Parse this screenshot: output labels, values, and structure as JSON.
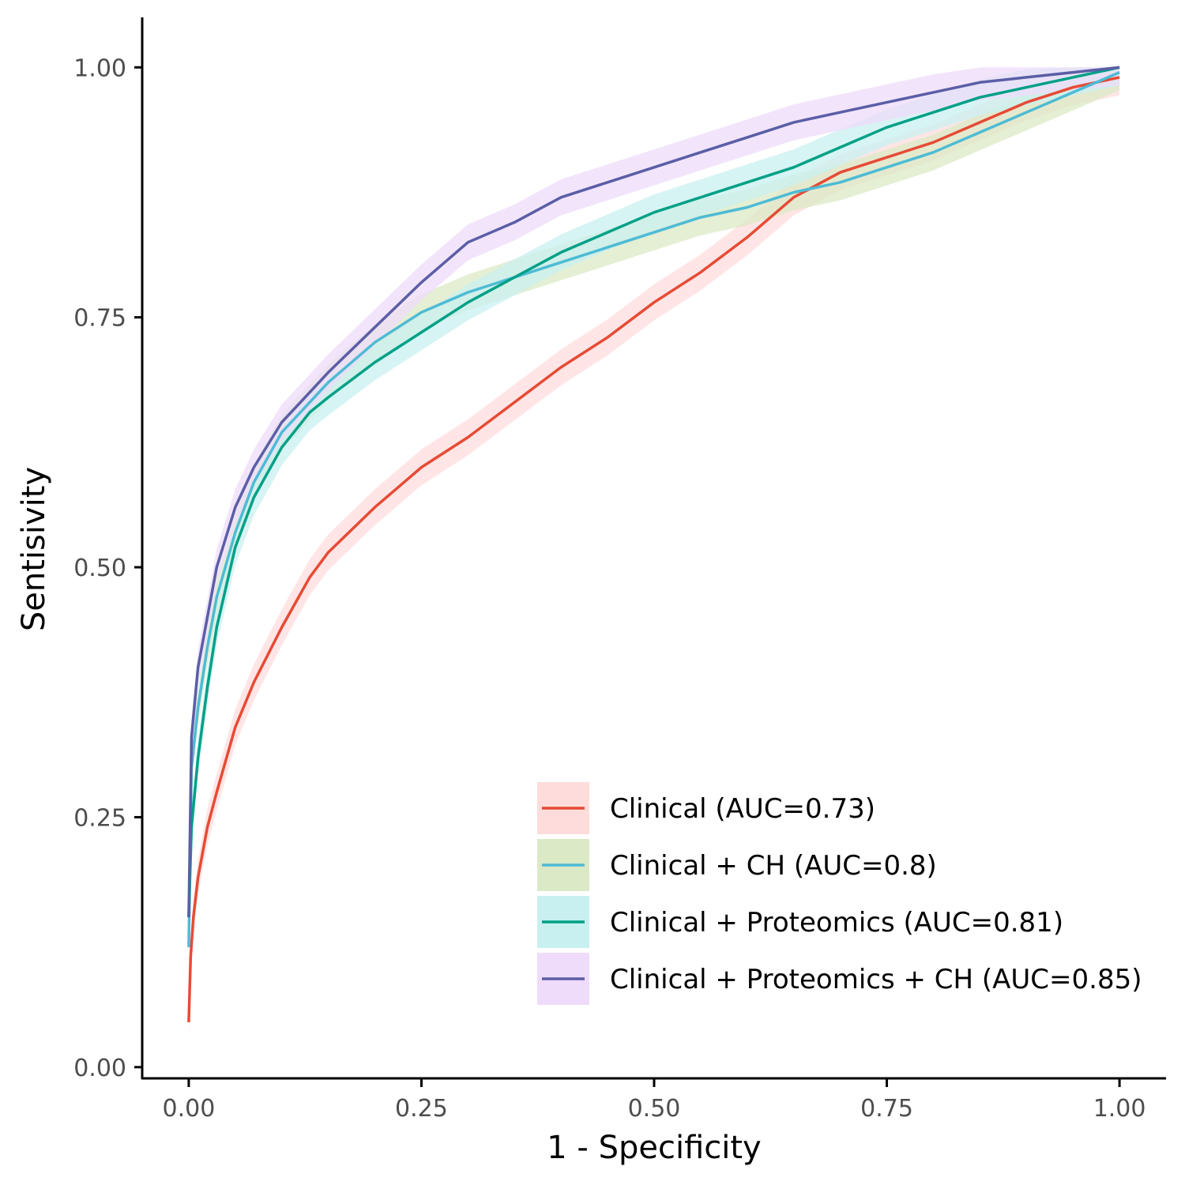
{
  "chart_data": {
    "type": "line",
    "xlabel": "1 - Specificity",
    "ylabel": "Sentisivity",
    "xlim": [
      -0.05,
      1.05
    ],
    "ylim": [
      -0.012,
      1.05
    ],
    "x_ticks": [
      "0.00",
      "0.25",
      "0.50",
      "0.75",
      "1.00"
    ],
    "y_ticks": [
      "0.00",
      "0.25",
      "0.50",
      "0.75",
      "1.00"
    ],
    "grid": false,
    "legend_position": "bottom-right",
    "series": [
      {
        "name": "Clinical (AUC=0.73)",
        "color": "#e64b35",
        "band_color": "#ffdcdc",
        "band": 0.018,
        "points": [
          [
            0.0,
            0.045
          ],
          [
            0.002,
            0.11
          ],
          [
            0.005,
            0.15
          ],
          [
            0.01,
            0.19
          ],
          [
            0.02,
            0.24
          ],
          [
            0.03,
            0.275
          ],
          [
            0.05,
            0.34
          ],
          [
            0.07,
            0.385
          ],
          [
            0.1,
            0.44
          ],
          [
            0.13,
            0.49
          ],
          [
            0.15,
            0.515
          ],
          [
            0.2,
            0.56
          ],
          [
            0.25,
            0.6
          ],
          [
            0.3,
            0.63
          ],
          [
            0.35,
            0.665
          ],
          [
            0.4,
            0.7
          ],
          [
            0.45,
            0.73
          ],
          [
            0.5,
            0.765
          ],
          [
            0.55,
            0.795
          ],
          [
            0.6,
            0.83
          ],
          [
            0.65,
            0.87
          ],
          [
            0.7,
            0.895
          ],
          [
            0.75,
            0.91
          ],
          [
            0.8,
            0.925
          ],
          [
            0.85,
            0.945
          ],
          [
            0.9,
            0.965
          ],
          [
            0.95,
            0.98
          ],
          [
            1.0,
            0.99
          ]
        ]
      },
      {
        "name": "Clinical + CH (AUC=0.8)",
        "color": "#4dbbd5",
        "band_color": "#dbe9c6",
        "band": 0.018,
        "points": [
          [
            0.0,
            0.12
          ],
          [
            0.003,
            0.3
          ],
          [
            0.01,
            0.36
          ],
          [
            0.02,
            0.42
          ],
          [
            0.03,
            0.47
          ],
          [
            0.05,
            0.535
          ],
          [
            0.07,
            0.585
          ],
          [
            0.1,
            0.635
          ],
          [
            0.13,
            0.665
          ],
          [
            0.15,
            0.685
          ],
          [
            0.2,
            0.725
          ],
          [
            0.25,
            0.755
          ],
          [
            0.3,
            0.775
          ],
          [
            0.35,
            0.79
          ],
          [
            0.4,
            0.805
          ],
          [
            0.45,
            0.82
          ],
          [
            0.5,
            0.835
          ],
          [
            0.55,
            0.85
          ],
          [
            0.6,
            0.86
          ],
          [
            0.65,
            0.875
          ],
          [
            0.7,
            0.885
          ],
          [
            0.75,
            0.9
          ],
          [
            0.8,
            0.915
          ],
          [
            0.85,
            0.935
          ],
          [
            0.9,
            0.955
          ],
          [
            0.95,
            0.975
          ],
          [
            1.0,
            0.995
          ]
        ]
      },
      {
        "name": "Clinical + Proteomics (AUC=0.81)",
        "color": "#00a087",
        "band_color": "#c9f0f0",
        "band": 0.018,
        "points": [
          [
            0.0,
            0.15
          ],
          [
            0.003,
            0.24
          ],
          [
            0.01,
            0.31
          ],
          [
            0.02,
            0.38
          ],
          [
            0.03,
            0.44
          ],
          [
            0.05,
            0.52
          ],
          [
            0.07,
            0.57
          ],
          [
            0.1,
            0.62
          ],
          [
            0.13,
            0.655
          ],
          [
            0.15,
            0.67
          ],
          [
            0.2,
            0.705
          ],
          [
            0.25,
            0.735
          ],
          [
            0.3,
            0.765
          ],
          [
            0.35,
            0.79
          ],
          [
            0.4,
            0.815
          ],
          [
            0.45,
            0.835
          ],
          [
            0.5,
            0.855
          ],
          [
            0.55,
            0.87
          ],
          [
            0.6,
            0.885
          ],
          [
            0.65,
            0.9
          ],
          [
            0.7,
            0.92
          ],
          [
            0.75,
            0.94
          ],
          [
            0.8,
            0.955
          ],
          [
            0.85,
            0.97
          ],
          [
            0.9,
            0.98
          ],
          [
            0.95,
            0.99
          ],
          [
            1.0,
            1.0
          ]
        ]
      },
      {
        "name": "Clinical + Proteomics + CH (AUC=0.85)",
        "color": "#5b5ea6",
        "band_color": "#eedcfa",
        "band": 0.018,
        "points": [
          [
            0.0,
            0.15
          ],
          [
            0.003,
            0.33
          ],
          [
            0.01,
            0.4
          ],
          [
            0.02,
            0.45
          ],
          [
            0.03,
            0.5
          ],
          [
            0.05,
            0.56
          ],
          [
            0.07,
            0.6
          ],
          [
            0.1,
            0.645
          ],
          [
            0.13,
            0.675
          ],
          [
            0.15,
            0.695
          ],
          [
            0.2,
            0.74
          ],
          [
            0.25,
            0.785
          ],
          [
            0.3,
            0.825
          ],
          [
            0.35,
            0.845
          ],
          [
            0.4,
            0.87
          ],
          [
            0.45,
            0.885
          ],
          [
            0.5,
            0.9
          ],
          [
            0.55,
            0.915
          ],
          [
            0.6,
            0.93
          ],
          [
            0.65,
            0.945
          ],
          [
            0.7,
            0.955
          ],
          [
            0.75,
            0.965
          ],
          [
            0.8,
            0.975
          ],
          [
            0.85,
            0.985
          ],
          [
            0.9,
            0.99
          ],
          [
            0.95,
            0.995
          ],
          [
            1.0,
            1.0
          ]
        ]
      }
    ]
  }
}
